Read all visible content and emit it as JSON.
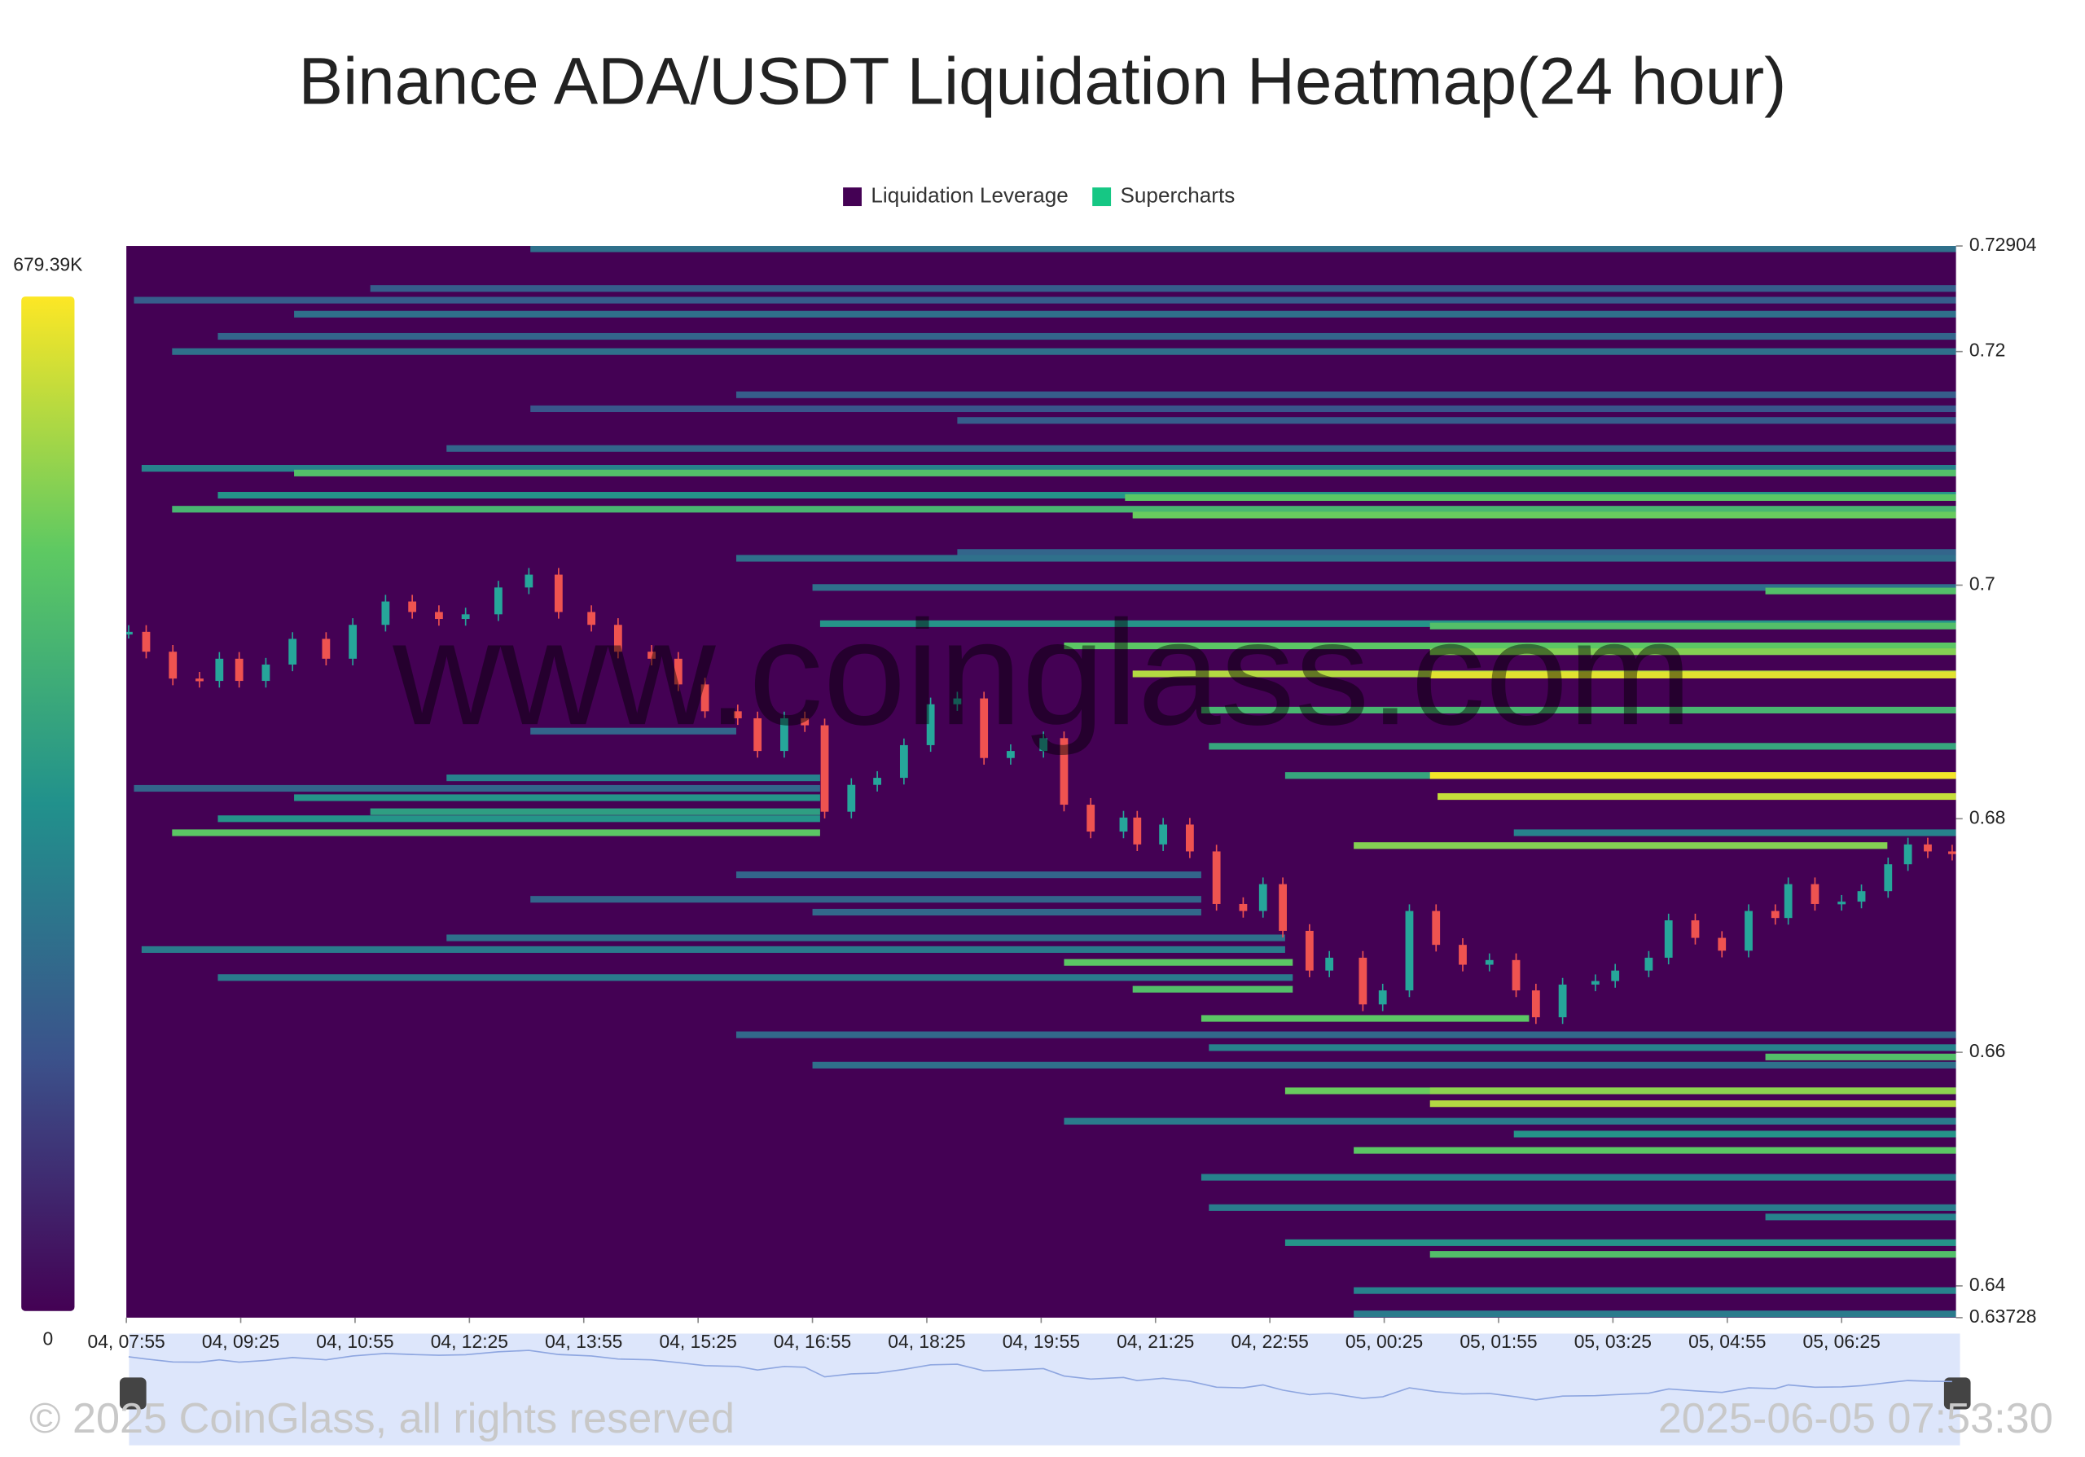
{
  "chart_data": {
    "type": "heatmap",
    "title": "Binance ADA/USDT Liquidation Heatmap(24 hour)",
    "legend": [
      {
        "name": "Liquidation Leverage",
        "color": "#440154"
      },
      {
        "name": "Supercharts",
        "color": "#16c784"
      }
    ],
    "xlim": [
      0,
      24
    ],
    "xticks": [
      {
        "value": 0,
        "label": "04, 07:55"
      },
      {
        "value": 1.5,
        "label": "04, 09:25"
      },
      {
        "value": 3,
        "label": "04, 10:55"
      },
      {
        "value": 4.5,
        "label": "04, 12:25"
      },
      {
        "value": 6,
        "label": "04, 13:55"
      },
      {
        "value": 7.5,
        "label": "04, 15:25"
      },
      {
        "value": 9,
        "label": "04, 16:55"
      },
      {
        "value": 10.5,
        "label": "04, 18:25"
      },
      {
        "value": 12,
        "label": "04, 19:55"
      },
      {
        "value": 13.5,
        "label": "04, 21:25"
      },
      {
        "value": 15,
        "label": "04, 22:55"
      },
      {
        "value": 16.5,
        "label": "05, 00:25"
      },
      {
        "value": 18,
        "label": "05, 01:55"
      },
      {
        "value": 19.5,
        "label": "05, 03:25"
      },
      {
        "value": 21,
        "label": "05, 04:55"
      },
      {
        "value": 22.5,
        "label": "05, 06:25"
      }
    ],
    "ylim": [
      0.63728,
      0.72904
    ],
    "yticks": [
      0.72904,
      0.72,
      0.7,
      0.68,
      0.66,
      0.64,
      0.63728
    ],
    "zlim": [
      0,
      679390
    ],
    "zticks": [
      {
        "value": 679390,
        "label": "679.39K"
      },
      0
    ],
    "colorscale": [
      "#440154",
      "#3b528b",
      "#21918c",
      "#5ec962",
      "#fde725"
    ],
    "bands": [
      {
        "price": 0.7288,
        "start": 5.3,
        "end": 24,
        "value": 250000
      },
      {
        "price": 0.7254,
        "start": 3.2,
        "end": 24,
        "value": 200000
      },
      {
        "price": 0.7244,
        "start": 0.1,
        "end": 24,
        "value": 200000
      },
      {
        "price": 0.7232,
        "start": 2.2,
        "end": 24,
        "value": 250000
      },
      {
        "price": 0.7213,
        "start": 1.2,
        "end": 24,
        "value": 220000
      },
      {
        "price": 0.72,
        "start": 0.6,
        "end": 24,
        "value": 250000
      },
      {
        "price": 0.7163,
        "start": 8.0,
        "end": 24,
        "value": 200000
      },
      {
        "price": 0.7151,
        "start": 5.3,
        "end": 24,
        "value": 180000
      },
      {
        "price": 0.7141,
        "start": 10.9,
        "end": 24,
        "value": 200000
      },
      {
        "price": 0.7117,
        "start": 4.2,
        "end": 24,
        "value": 220000
      },
      {
        "price": 0.71,
        "start": 0.2,
        "end": 24,
        "value": 300000
      },
      {
        "price": 0.7096,
        "start": 2.2,
        "end": 24,
        "value": 480000
      },
      {
        "price": 0.7077,
        "start": 1.2,
        "end": 24,
        "value": 350000
      },
      {
        "price": 0.7075,
        "start": 13.1,
        "end": 24,
        "value": 500000
      },
      {
        "price": 0.7065,
        "start": 0.6,
        "end": 24,
        "value": 450000
      },
      {
        "price": 0.706,
        "start": 13.2,
        "end": 24,
        "value": 520000
      },
      {
        "price": 0.7028,
        "start": 10.9,
        "end": 24,
        "value": 220000
      },
      {
        "price": 0.7023,
        "start": 8.0,
        "end": 24,
        "value": 250000
      },
      {
        "price": 0.6998,
        "start": 9.0,
        "end": 24,
        "value": 250000
      },
      {
        "price": 0.6995,
        "start": 21.5,
        "end": 24,
        "value": 480000
      },
      {
        "price": 0.6967,
        "start": 9.1,
        "end": 24,
        "value": 350000
      },
      {
        "price": 0.6965,
        "start": 17.1,
        "end": 24,
        "value": 480000
      },
      {
        "price": 0.6948,
        "start": 12.3,
        "end": 24,
        "value": 500000
      },
      {
        "price": 0.6943,
        "start": 17.1,
        "end": 24,
        "value": 550000
      },
      {
        "price": 0.6924,
        "start": 13.2,
        "end": 24,
        "value": 600000
      },
      {
        "price": 0.6923,
        "start": 17.1,
        "end": 24,
        "value": 650000
      },
      {
        "price": 0.6893,
        "start": 14.1,
        "end": 24,
        "value": 450000
      },
      {
        "price": 0.6875,
        "start": 5.3,
        "end": 8.0,
        "value": 220000
      },
      {
        "price": 0.6862,
        "start": 14.2,
        "end": 24,
        "value": 400000
      },
      {
        "price": 0.6837,
        "start": 15.2,
        "end": 24,
        "value": 400000
      },
      {
        "price": 0.6837,
        "start": 17.1,
        "end": 24,
        "value": 670000
      },
      {
        "price": 0.6835,
        "start": 4.2,
        "end": 9.1,
        "value": 300000
      },
      {
        "price": 0.6826,
        "start": 0.1,
        "end": 9.1,
        "value": 220000
      },
      {
        "price": 0.6819,
        "start": 17.2,
        "end": 24,
        "value": 620000
      },
      {
        "price": 0.6818,
        "start": 2.2,
        "end": 9.1,
        "value": 350000
      },
      {
        "price": 0.6806,
        "start": 3.2,
        "end": 9.1,
        "value": 380000
      },
      {
        "price": 0.68,
        "start": 1.2,
        "end": 9.1,
        "value": 350000
      },
      {
        "price": 0.6788,
        "start": 0.6,
        "end": 9.1,
        "value": 500000
      },
      {
        "price": 0.6788,
        "start": 18.2,
        "end": 24,
        "value": 300000
      },
      {
        "price": 0.6777,
        "start": 16.1,
        "end": 23.1,
        "value": 550000
      },
      {
        "price": 0.6752,
        "start": 8.0,
        "end": 14.1,
        "value": 220000
      },
      {
        "price": 0.6731,
        "start": 5.3,
        "end": 14.1,
        "value": 220000
      },
      {
        "price": 0.672,
        "start": 9.0,
        "end": 14.1,
        "value": 230000
      },
      {
        "price": 0.6698,
        "start": 4.2,
        "end": 15.2,
        "value": 250000
      },
      {
        "price": 0.6688,
        "start": 0.2,
        "end": 15.2,
        "value": 280000
      },
      {
        "price": 0.6677,
        "start": 12.3,
        "end": 15.3,
        "value": 500000
      },
      {
        "price": 0.6664,
        "start": 1.2,
        "end": 15.3,
        "value": 280000
      },
      {
        "price": 0.6654,
        "start": 13.2,
        "end": 15.3,
        "value": 480000
      },
      {
        "price": 0.6629,
        "start": 14.1,
        "end": 18.4,
        "value": 500000
      },
      {
        "price": 0.6615,
        "start": 8.0,
        "end": 24,
        "value": 230000
      },
      {
        "price": 0.6604,
        "start": 14.2,
        "end": 24,
        "value": 300000
      },
      {
        "price": 0.6596,
        "start": 21.5,
        "end": 24,
        "value": 480000
      },
      {
        "price": 0.6589,
        "start": 9.0,
        "end": 24,
        "value": 250000
      },
      {
        "price": 0.6567,
        "start": 15.2,
        "end": 24,
        "value": 520000
      },
      {
        "price": 0.6567,
        "start": 17.1,
        "end": 24,
        "value": 560000
      },
      {
        "price": 0.6556,
        "start": 17.1,
        "end": 24,
        "value": 600000
      },
      {
        "price": 0.6541,
        "start": 12.3,
        "end": 24,
        "value": 280000
      },
      {
        "price": 0.653,
        "start": 18.2,
        "end": 24,
        "value": 350000
      },
      {
        "price": 0.6516,
        "start": 16.1,
        "end": 24,
        "value": 500000
      },
      {
        "price": 0.6493,
        "start": 14.1,
        "end": 24,
        "value": 300000
      },
      {
        "price": 0.6467,
        "start": 14.2,
        "end": 24,
        "value": 280000
      },
      {
        "price": 0.6459,
        "start": 21.5,
        "end": 24,
        "value": 300000
      },
      {
        "price": 0.6437,
        "start": 15.2,
        "end": 24,
        "value": 350000
      },
      {
        "price": 0.6427,
        "start": 17.1,
        "end": 24,
        "value": 480000
      },
      {
        "price": 0.6396,
        "start": 16.1,
        "end": 24,
        "value": 300000
      },
      {
        "price": 0.6376,
        "start": 16.1,
        "end": 24,
        "value": 280000
      }
    ],
    "price": {
      "up_color": "#26a69a",
      "down_color": "#ef5350",
      "x": [
        0.03,
        0.26,
        0.61,
        0.96,
        1.22,
        1.48,
        1.83,
        2.18,
        2.62,
        2.97,
        3.4,
        3.75,
        4.1,
        4.45,
        4.88,
        5.28,
        5.67,
        6.1,
        6.45,
        6.89,
        7.24,
        7.59,
        8.02,
        8.28,
        8.63,
        8.9,
        9.16,
        9.51,
        9.85,
        10.2,
        10.55,
        10.9,
        11.25,
        11.6,
        12.03,
        12.3,
        12.65,
        13.08,
        13.26,
        13.6,
        13.95,
        14.3,
        14.65,
        14.91,
        15.17,
        15.52,
        15.78,
        16.22,
        16.48,
        16.83,
        17.18,
        17.53,
        17.88,
        18.23,
        18.49,
        18.84,
        19.27,
        19.53,
        19.97,
        20.23,
        20.58,
        20.93,
        21.28,
        21.63,
        21.8,
        22.15,
        22.5,
        22.76,
        23.11,
        23.37,
        23.63,
        23.95
      ],
      "close": [
        0.696,
        0.6943,
        0.692,
        0.6918,
        0.6937,
        0.6918,
        0.6932,
        0.6954,
        0.6937,
        0.6966,
        0.6986,
        0.6977,
        0.6971,
        0.6975,
        0.6998,
        0.7009,
        0.6977,
        0.6966,
        0.6943,
        0.6937,
        0.6915,
        0.6892,
        0.6886,
        0.6858,
        0.6886,
        0.688,
        0.6806,
        0.6829,
        0.6835,
        0.6863,
        0.6898,
        0.6903,
        0.6852,
        0.6858,
        0.6869,
        0.6812,
        0.6789,
        0.6801,
        0.6778,
        0.6795,
        0.6772,
        0.6727,
        0.6721,
        0.6744,
        0.6704,
        0.667,
        0.6681,
        0.6641,
        0.6653,
        0.6721,
        0.6692,
        0.6675,
        0.6679,
        0.6653,
        0.663,
        0.6658,
        0.6661,
        0.667,
        0.6681,
        0.6713,
        0.6698,
        0.6687,
        0.6721,
        0.6715,
        0.6744,
        0.6727,
        0.6729,
        0.6738,
        0.6761,
        0.6778,
        0.6772,
        0.677
      ]
    }
  },
  "watermark": "www.coinglass.com",
  "footer": {
    "copyright": "© 2025 CoinGlass, all rights reserved",
    "timestamp": "2025-06-05 07:53:30"
  }
}
